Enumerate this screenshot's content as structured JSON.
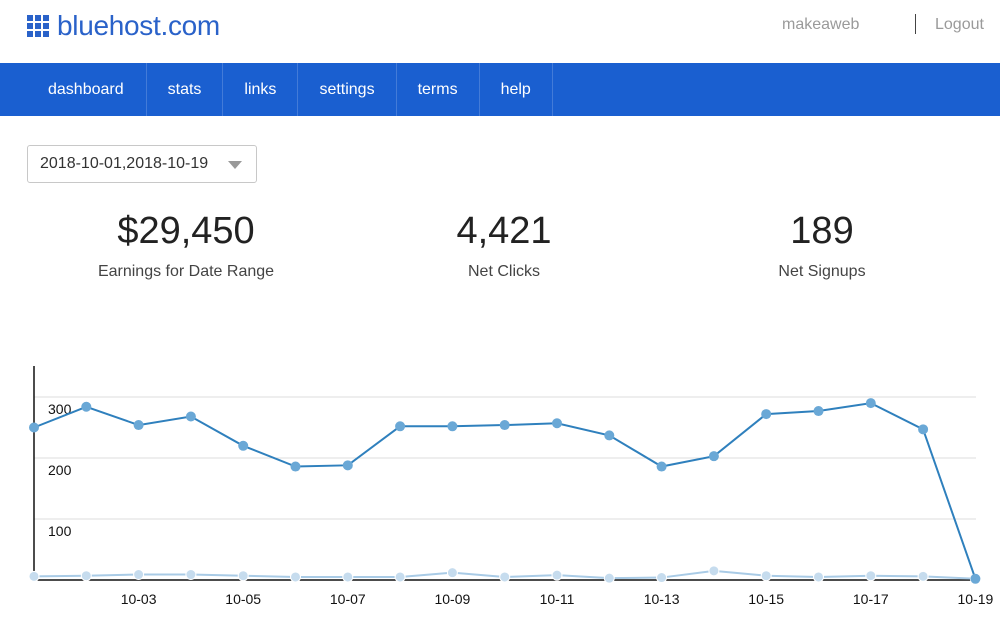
{
  "header": {
    "logo_text": "bluehost.com",
    "user": "makeaweb",
    "logout": "Logout"
  },
  "nav": {
    "items": [
      "dashboard",
      "stats",
      "links",
      "settings",
      "terms",
      "help"
    ]
  },
  "filters": {
    "date_range": "2018-10-01,2018-10-19"
  },
  "stats": {
    "earnings": {
      "value": "$29,450",
      "label": "Earnings for Date Range"
    },
    "clicks": {
      "value": "4,421",
      "label": "Net Clicks"
    },
    "signups": {
      "value": "189",
      "label": "Net Signups"
    }
  },
  "colors": {
    "brand": "#1a5fd0",
    "series_clicks": "#2f80bd",
    "series_clicks_point": "#6aa8d6",
    "series_signups": "#a9cbe6",
    "series_signups_point": "#c6dcee"
  },
  "chart_data": {
    "type": "line",
    "x": [
      "10-01",
      "10-02",
      "10-03",
      "10-04",
      "10-05",
      "10-06",
      "10-07",
      "10-08",
      "10-09",
      "10-10",
      "10-11",
      "10-12",
      "10-13",
      "10-14",
      "10-15",
      "10-16",
      "10-17",
      "10-18",
      "10-19"
    ],
    "x_tick_labels": [
      "10-03",
      "10-05",
      "10-07",
      "10-09",
      "10-11",
      "10-13",
      "10-15",
      "10-17",
      "10-19"
    ],
    "y_ticks": [
      "100",
      "200",
      "300"
    ],
    "ylim": [
      0,
      330
    ],
    "grid": true,
    "series": [
      {
        "values": [
          250,
          284,
          254,
          268,
          220,
          186,
          188,
          252,
          252,
          254,
          257,
          237,
          186,
          203,
          272,
          277,
          290,
          247,
          2
        ]
      },
      {
        "values": [
          6,
          7,
          9,
          9,
          7,
          5,
          5,
          5,
          12,
          5,
          8,
          3,
          4,
          15,
          7,
          5,
          7,
          6,
          2
        ]
      }
    ]
  }
}
